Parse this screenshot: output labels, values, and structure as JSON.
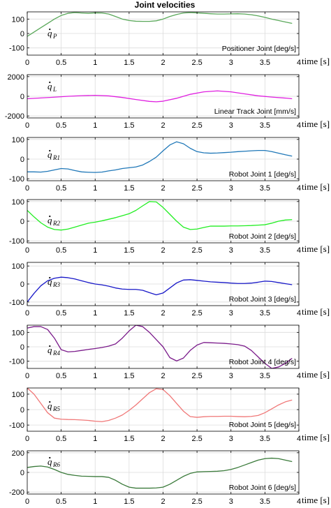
{
  "title": "Joint velocities",
  "chart_data": [
    {
      "type": "line",
      "name": "Positioner Joint [deg/s]",
      "symbol": "q",
      "symbol_sub": "P",
      "xlabel": "time [s]",
      "xlim": [
        0,
        4
      ],
      "ylim": [
        -150,
        150
      ],
      "yticks": [
        -100,
        0,
        100
      ],
      "xticks": [
        0,
        0.5,
        1,
        1.5,
        2,
        2.5,
        3,
        3.5,
        4
      ],
      "grid": true,
      "color": "#5aa85a",
      "x": [
        0,
        0.1,
        0.2,
        0.3,
        0.4,
        0.5,
        0.6,
        0.7,
        0.8,
        0.9,
        1.0,
        1.1,
        1.2,
        1.3,
        1.4,
        1.5,
        1.6,
        1.7,
        1.8,
        1.9,
        2.0,
        2.1,
        2.2,
        2.3,
        2.4,
        2.5,
        2.6,
        2.7,
        2.8,
        2.9,
        3.0,
        3.1,
        3.2,
        3.3,
        3.4,
        3.5,
        3.6,
        3.7,
        3.8,
        3.9
      ],
      "y": [
        -20,
        10,
        40,
        70,
        100,
        125,
        140,
        145,
        142,
        140,
        143,
        142,
        135,
        118,
        100,
        90,
        85,
        84,
        84,
        88,
        100,
        118,
        132,
        142,
        145,
        143,
        140,
        137,
        135,
        135,
        136,
        137,
        135,
        130,
        122,
        112,
        100,
        90,
        80,
        70
      ]
    },
    {
      "type": "line",
      "name": "Linear Track Joint [mm/s]",
      "symbol": "q",
      "symbol_sub": "L",
      "xlabel": "time [s]",
      "xlim": [
        0,
        4
      ],
      "ylim": [
        -2200,
        2200
      ],
      "yticks": [
        -2000,
        0,
        2000
      ],
      "xticks": [
        0,
        0.5,
        1,
        1.5,
        2,
        2.5,
        3,
        3.5,
        4
      ],
      "grid": true,
      "color": "#e020e0",
      "x": [
        0,
        0.2,
        0.4,
        0.6,
        0.8,
        1.0,
        1.2,
        1.4,
        1.6,
        1.8,
        1.9,
        2.0,
        2.2,
        2.4,
        2.6,
        2.8,
        3.0,
        3.2,
        3.4,
        3.6,
        3.8,
        3.9
      ],
      "y": [
        -250,
        -170,
        -90,
        0,
        60,
        100,
        40,
        -120,
        -330,
        -520,
        -560,
        -500,
        -200,
        200,
        450,
        550,
        450,
        250,
        50,
        -80,
        -180,
        -250
      ]
    },
    {
      "type": "line",
      "name": "Robot Joint 1 [deg/s]",
      "symbol": "q",
      "symbol_sub": "R1",
      "xlabel": "time [s]",
      "xlim": [
        0,
        4
      ],
      "ylim": [
        -110,
        110
      ],
      "yticks": [
        -100,
        0,
        100
      ],
      "xticks": [
        0,
        0.5,
        1,
        1.5,
        2,
        2.5,
        3,
        3.5,
        4
      ],
      "grid": true,
      "color": "#2078b8",
      "x": [
        0,
        0.1,
        0.2,
        0.3,
        0.4,
        0.5,
        0.6,
        0.7,
        0.8,
        0.9,
        1.0,
        1.1,
        1.2,
        1.3,
        1.4,
        1.5,
        1.6,
        1.7,
        1.8,
        1.9,
        2.0,
        2.1,
        2.2,
        2.3,
        2.4,
        2.5,
        2.6,
        2.7,
        2.8,
        2.9,
        3.0,
        3.1,
        3.2,
        3.3,
        3.4,
        3.5,
        3.6,
        3.7,
        3.8,
        3.9
      ],
      "y": [
        -65,
        -65,
        -66,
        -62,
        -55,
        -48,
        -50,
        -58,
        -65,
        -67,
        -68,
        -66,
        -60,
        -55,
        -48,
        -44,
        -40,
        -30,
        -12,
        10,
        42,
        72,
        88,
        78,
        55,
        38,
        32,
        30,
        31,
        33,
        35,
        38,
        40,
        42,
        44,
        44,
        38,
        30,
        22,
        15
      ]
    },
    {
      "type": "line",
      "name": "Robot Joint 2 [deg/s]",
      "symbol": "q",
      "symbol_sub": "R2",
      "xlabel": "time [s]",
      "xlim": [
        0,
        4
      ],
      "ylim": [
        -110,
        110
      ],
      "yticks": [
        -100,
        0,
        100
      ],
      "xticks": [
        0,
        0.5,
        1,
        1.5,
        2,
        2.5,
        3,
        3.5,
        4
      ],
      "grid": true,
      "color": "#22ee22",
      "x": [
        0,
        0.1,
        0.2,
        0.3,
        0.4,
        0.5,
        0.6,
        0.7,
        0.8,
        0.9,
        1.0,
        1.1,
        1.2,
        1.3,
        1.4,
        1.5,
        1.6,
        1.7,
        1.8,
        1.9,
        2.0,
        2.1,
        2.2,
        2.3,
        2.4,
        2.5,
        2.6,
        2.7,
        2.8,
        2.9,
        3.0,
        3.1,
        3.2,
        3.3,
        3.4,
        3.5,
        3.6,
        3.7,
        3.8,
        3.9
      ],
      "y": [
        55,
        22,
        -8,
        -30,
        -42,
        -45,
        -40,
        -30,
        -20,
        -10,
        -5,
        2,
        10,
        18,
        28,
        38,
        55,
        78,
        100,
        98,
        70,
        35,
        0,
        -30,
        -42,
        -40,
        -32,
        -25,
        -25,
        -25,
        -24,
        -24,
        -23,
        -22,
        -20,
        -18,
        -10,
        0,
        6,
        8
      ]
    },
    {
      "type": "line",
      "name": "Robot Joint 3 [deg/s]",
      "symbol": "q",
      "symbol_sub": "R3",
      "xlabel": "time [s]",
      "xlim": [
        0,
        4
      ],
      "ylim": [
        -120,
        120
      ],
      "yticks": [
        -100,
        0,
        100
      ],
      "xticks": [
        0,
        0.5,
        1,
        1.5,
        2,
        2.5,
        3,
        3.5,
        4
      ],
      "grid": true,
      "color": "#1818c8",
      "x": [
        0,
        0.1,
        0.2,
        0.3,
        0.4,
        0.5,
        0.6,
        0.7,
        0.8,
        0.9,
        1.0,
        1.1,
        1.2,
        1.3,
        1.4,
        1.5,
        1.6,
        1.7,
        1.8,
        1.9,
        2.0,
        2.1,
        2.2,
        2.3,
        2.4,
        2.5,
        2.6,
        2.7,
        2.8,
        2.9,
        3.0,
        3.1,
        3.2,
        3.3,
        3.4,
        3.5,
        3.6,
        3.7,
        3.8,
        3.9
      ],
      "y": [
        -100,
        -52,
        -10,
        18,
        32,
        38,
        35,
        28,
        18,
        8,
        0,
        -5,
        -12,
        -22,
        -28,
        -30,
        -30,
        -35,
        -48,
        -60,
        -50,
        -22,
        6,
        22,
        24,
        20,
        16,
        12,
        10,
        8,
        5,
        3,
        3,
        5,
        10,
        16,
        14,
        8,
        2,
        -4
      ]
    },
    {
      "type": "line",
      "name": "Robot Joint 4 [deg/s]",
      "symbol": "q",
      "symbol_sub": "R4",
      "xlabel": "time [s]",
      "xlim": [
        0,
        4
      ],
      "ylim": [
        -150,
        150
      ],
      "yticks": [
        -100,
        0,
        100
      ],
      "xticks": [
        0,
        0.5,
        1,
        1.5,
        2,
        2.5,
        3,
        3.5,
        4
      ],
      "grid": true,
      "color": "#7a1a8a",
      "x": [
        0,
        0.1,
        0.2,
        0.3,
        0.4,
        0.5,
        0.6,
        0.7,
        0.8,
        0.9,
        1.0,
        1.1,
        1.2,
        1.3,
        1.4,
        1.5,
        1.6,
        1.7,
        1.8,
        1.9,
        2.0,
        2.1,
        2.2,
        2.3,
        2.4,
        2.5,
        2.6,
        2.7,
        2.8,
        2.9,
        3.0,
        3.1,
        3.2,
        3.3,
        3.4,
        3.5,
        3.6,
        3.7,
        3.8,
        3.9
      ],
      "y": [
        130,
        140,
        140,
        120,
        60,
        -20,
        -35,
        -32,
        -25,
        -18,
        -12,
        -5,
        5,
        20,
        60,
        110,
        150,
        140,
        100,
        50,
        0,
        -75,
        -98,
        -78,
        -25,
        12,
        30,
        28,
        26,
        24,
        20,
        15,
        5,
        -25,
        -70,
        -115,
        -150,
        -140,
        -115,
        -80
      ]
    },
    {
      "type": "line",
      "name": "Robot Joint 5 [deg/s]",
      "symbol": "q",
      "symbol_sub": "R5",
      "xlabel": "time [s]",
      "xlim": [
        0,
        4
      ],
      "ylim": [
        -140,
        140
      ],
      "yticks": [
        -100,
        0,
        100
      ],
      "xticks": [
        0,
        0.5,
        1,
        1.5,
        2,
        2.5,
        3,
        3.5,
        4
      ],
      "grid": true,
      "color": "#f07878",
      "x": [
        0,
        0.1,
        0.2,
        0.3,
        0.4,
        0.5,
        0.6,
        0.7,
        0.8,
        0.9,
        1.0,
        1.1,
        1.2,
        1.3,
        1.4,
        1.5,
        1.6,
        1.7,
        1.8,
        1.9,
        2.0,
        2.1,
        2.2,
        2.3,
        2.4,
        2.5,
        2.6,
        2.7,
        2.8,
        2.9,
        3.0,
        3.1,
        3.2,
        3.3,
        3.4,
        3.5,
        3.6,
        3.7,
        3.8,
        3.9
      ],
      "y": [
        140,
        100,
        40,
        -20,
        -55,
        -62,
        -64,
        -65,
        -67,
        -70,
        -75,
        -78,
        -70,
        -55,
        -35,
        -5,
        30,
        70,
        110,
        135,
        130,
        90,
        40,
        -10,
        -45,
        -50,
        -46,
        -44,
        -44,
        -43,
        -43,
        -45,
        -46,
        -44,
        -38,
        -20,
        5,
        30,
        50,
        62
      ]
    },
    {
      "type": "line",
      "name": "Robot Joint 6 [deg/s]",
      "symbol": "q",
      "symbol_sub": "R6",
      "xlabel": "time [s]",
      "xlim": [
        0,
        4
      ],
      "ylim": [
        -220,
        220
      ],
      "yticks": [
        -200,
        0,
        200
      ],
      "xticks": [
        0,
        0.5,
        1,
        1.5,
        2,
        2.5,
        3,
        3.5,
        4
      ],
      "grid": true,
      "color": "#3a7a3a",
      "x": [
        0,
        0.1,
        0.2,
        0.3,
        0.4,
        0.5,
        0.6,
        0.7,
        0.8,
        0.9,
        1.0,
        1.1,
        1.2,
        1.3,
        1.4,
        1.5,
        1.6,
        1.7,
        1.8,
        1.9,
        2.0,
        2.1,
        2.2,
        2.3,
        2.4,
        2.5,
        2.6,
        2.7,
        2.8,
        2.9,
        3.0,
        3.1,
        3.2,
        3.3,
        3.4,
        3.5,
        3.6,
        3.7,
        3.8,
        3.9
      ],
      "y": [
        50,
        60,
        65,
        55,
        30,
        0,
        -20,
        -30,
        -38,
        -40,
        -42,
        -42,
        -50,
        -80,
        -120,
        -150,
        -160,
        -160,
        -160,
        -158,
        -150,
        -120,
        -80,
        -40,
        -10,
        5,
        8,
        10,
        12,
        18,
        30,
        50,
        75,
        100,
        125,
        140,
        145,
        140,
        125,
        110
      ]
    }
  ]
}
